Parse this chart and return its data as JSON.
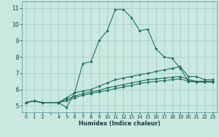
{
  "title": "",
  "xlabel": "Humidex (Indice chaleur)",
  "ylabel": "",
  "bg_color": "#c8e8e0",
  "grid_color": "#a8ccc8",
  "line_color": "#1a6b5a",
  "xlim": [
    -0.5,
    23.5
  ],
  "ylim": [
    4.6,
    11.4
  ],
  "xticks": [
    0,
    1,
    2,
    3,
    4,
    5,
    6,
    7,
    8,
    9,
    10,
    11,
    12,
    13,
    14,
    15,
    16,
    17,
    18,
    19,
    20,
    21,
    22,
    23
  ],
  "xtick_labels": [
    "0",
    "1",
    "2",
    "",
    "4",
    "5",
    "6",
    "7",
    "8",
    "9",
    "10",
    "11",
    "12",
    "13",
    "14",
    "15",
    "16",
    "17",
    "18",
    "19",
    "20",
    "21",
    "22",
    "23"
  ],
  "yticks": [
    5,
    6,
    7,
    8,
    9,
    10,
    11
  ],
  "lines": [
    {
      "x": [
        0,
        1,
        2,
        4,
        5,
        6,
        7,
        8,
        9,
        10,
        11,
        12,
        13,
        14,
        15,
        16,
        17,
        18,
        19,
        20,
        21,
        22,
        23
      ],
      "y": [
        5.2,
        5.3,
        5.2,
        5.2,
        4.9,
        5.8,
        7.6,
        7.7,
        9.0,
        9.6,
        10.9,
        10.9,
        10.4,
        9.6,
        9.7,
        8.5,
        8.0,
        7.9,
        7.3,
        6.5,
        6.5,
        6.5,
        6.5
      ]
    },
    {
      "x": [
        0,
        1,
        2,
        4,
        5,
        6,
        7,
        8,
        9,
        10,
        11,
        12,
        13,
        14,
        15,
        16,
        17,
        18,
        19,
        20,
        21,
        22,
        23
      ],
      "y": [
        5.2,
        5.3,
        5.2,
        5.2,
        5.5,
        5.8,
        5.9,
        6.0,
        6.2,
        6.4,
        6.6,
        6.7,
        6.8,
        6.9,
        7.0,
        7.1,
        7.2,
        7.3,
        7.4,
        6.8,
        6.8,
        6.6,
        6.6
      ]
    },
    {
      "x": [
        0,
        1,
        2,
        4,
        5,
        6,
        7,
        8,
        9,
        10,
        11,
        12,
        13,
        14,
        15,
        16,
        17,
        18,
        19,
        20,
        21,
        22,
        23
      ],
      "y": [
        5.2,
        5.3,
        5.2,
        5.2,
        5.4,
        5.6,
        5.75,
        5.85,
        5.95,
        6.1,
        6.2,
        6.3,
        6.4,
        6.5,
        6.6,
        6.65,
        6.7,
        6.75,
        6.8,
        6.6,
        6.5,
        6.5,
        6.5
      ]
    },
    {
      "x": [
        0,
        1,
        2,
        4,
        5,
        6,
        7,
        8,
        9,
        10,
        11,
        12,
        13,
        14,
        15,
        16,
        17,
        18,
        19,
        20,
        21,
        22,
        23
      ],
      "y": [
        5.2,
        5.3,
        5.2,
        5.2,
        5.3,
        5.5,
        5.65,
        5.75,
        5.85,
        5.95,
        6.05,
        6.15,
        6.25,
        6.35,
        6.45,
        6.5,
        6.55,
        6.6,
        6.65,
        6.5,
        6.45,
        6.45,
        6.45
      ]
    }
  ]
}
